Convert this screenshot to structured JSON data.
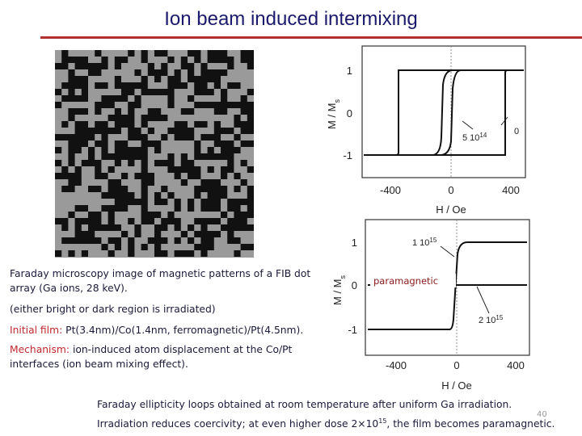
{
  "title": "Ion beam induced intermixing",
  "left_text": {
    "image_caption": "Faraday microscopy image of magnetic patterns of a FIB dot array (Ga ions, 28 keV).",
    "note": "(either bright or dark region is irradiated)",
    "initial_film": {
      "label": "Initial film:",
      "text": "Pt(3.4nm)/Co(1.4nm, ferromagnetic)/Pt(4.5nm)."
    },
    "mechanism": {
      "label": "Mechanism:",
      "text": "ion-induced atom displacement at the Co/Pt interfaces (ion beam mixing effect)."
    }
  },
  "plots": [
    {
      "y_label": "M / M",
      "y_label_sub": "s",
      "y_ticks": [
        "1",
        "0",
        "-1"
      ],
      "x_ticks": [
        "-400",
        "0",
        "400"
      ],
      "x_label": "H / Oe",
      "annotations": [
        {
          "text": "5 10",
          "sup": "14"
        },
        {
          "text": "0"
        }
      ]
    },
    {
      "y_label": "M / M",
      "y_label_sub": "s",
      "y_ticks": [
        "1",
        "0",
        "-1"
      ],
      "x_ticks": [
        "-400",
        "0",
        "400"
      ],
      "x_label": "H / Oe",
      "annotations": [
        {
          "text": "1 10",
          "sup": "15"
        },
        {
          "text": "2 10",
          "sup": "15"
        },
        {
          "text": "paramagnetic"
        }
      ]
    }
  ],
  "caption": {
    "line1": "Faraday ellipticity loops obtained at room temperature after uniform Ga irradiation.",
    "line2_pre": "Irradiation reduces coercivity; at even higher dose 2×10",
    "line2_sup": "15",
    "line2_post": ", the film becomes paramagnetic."
  },
  "page_number": "40"
}
